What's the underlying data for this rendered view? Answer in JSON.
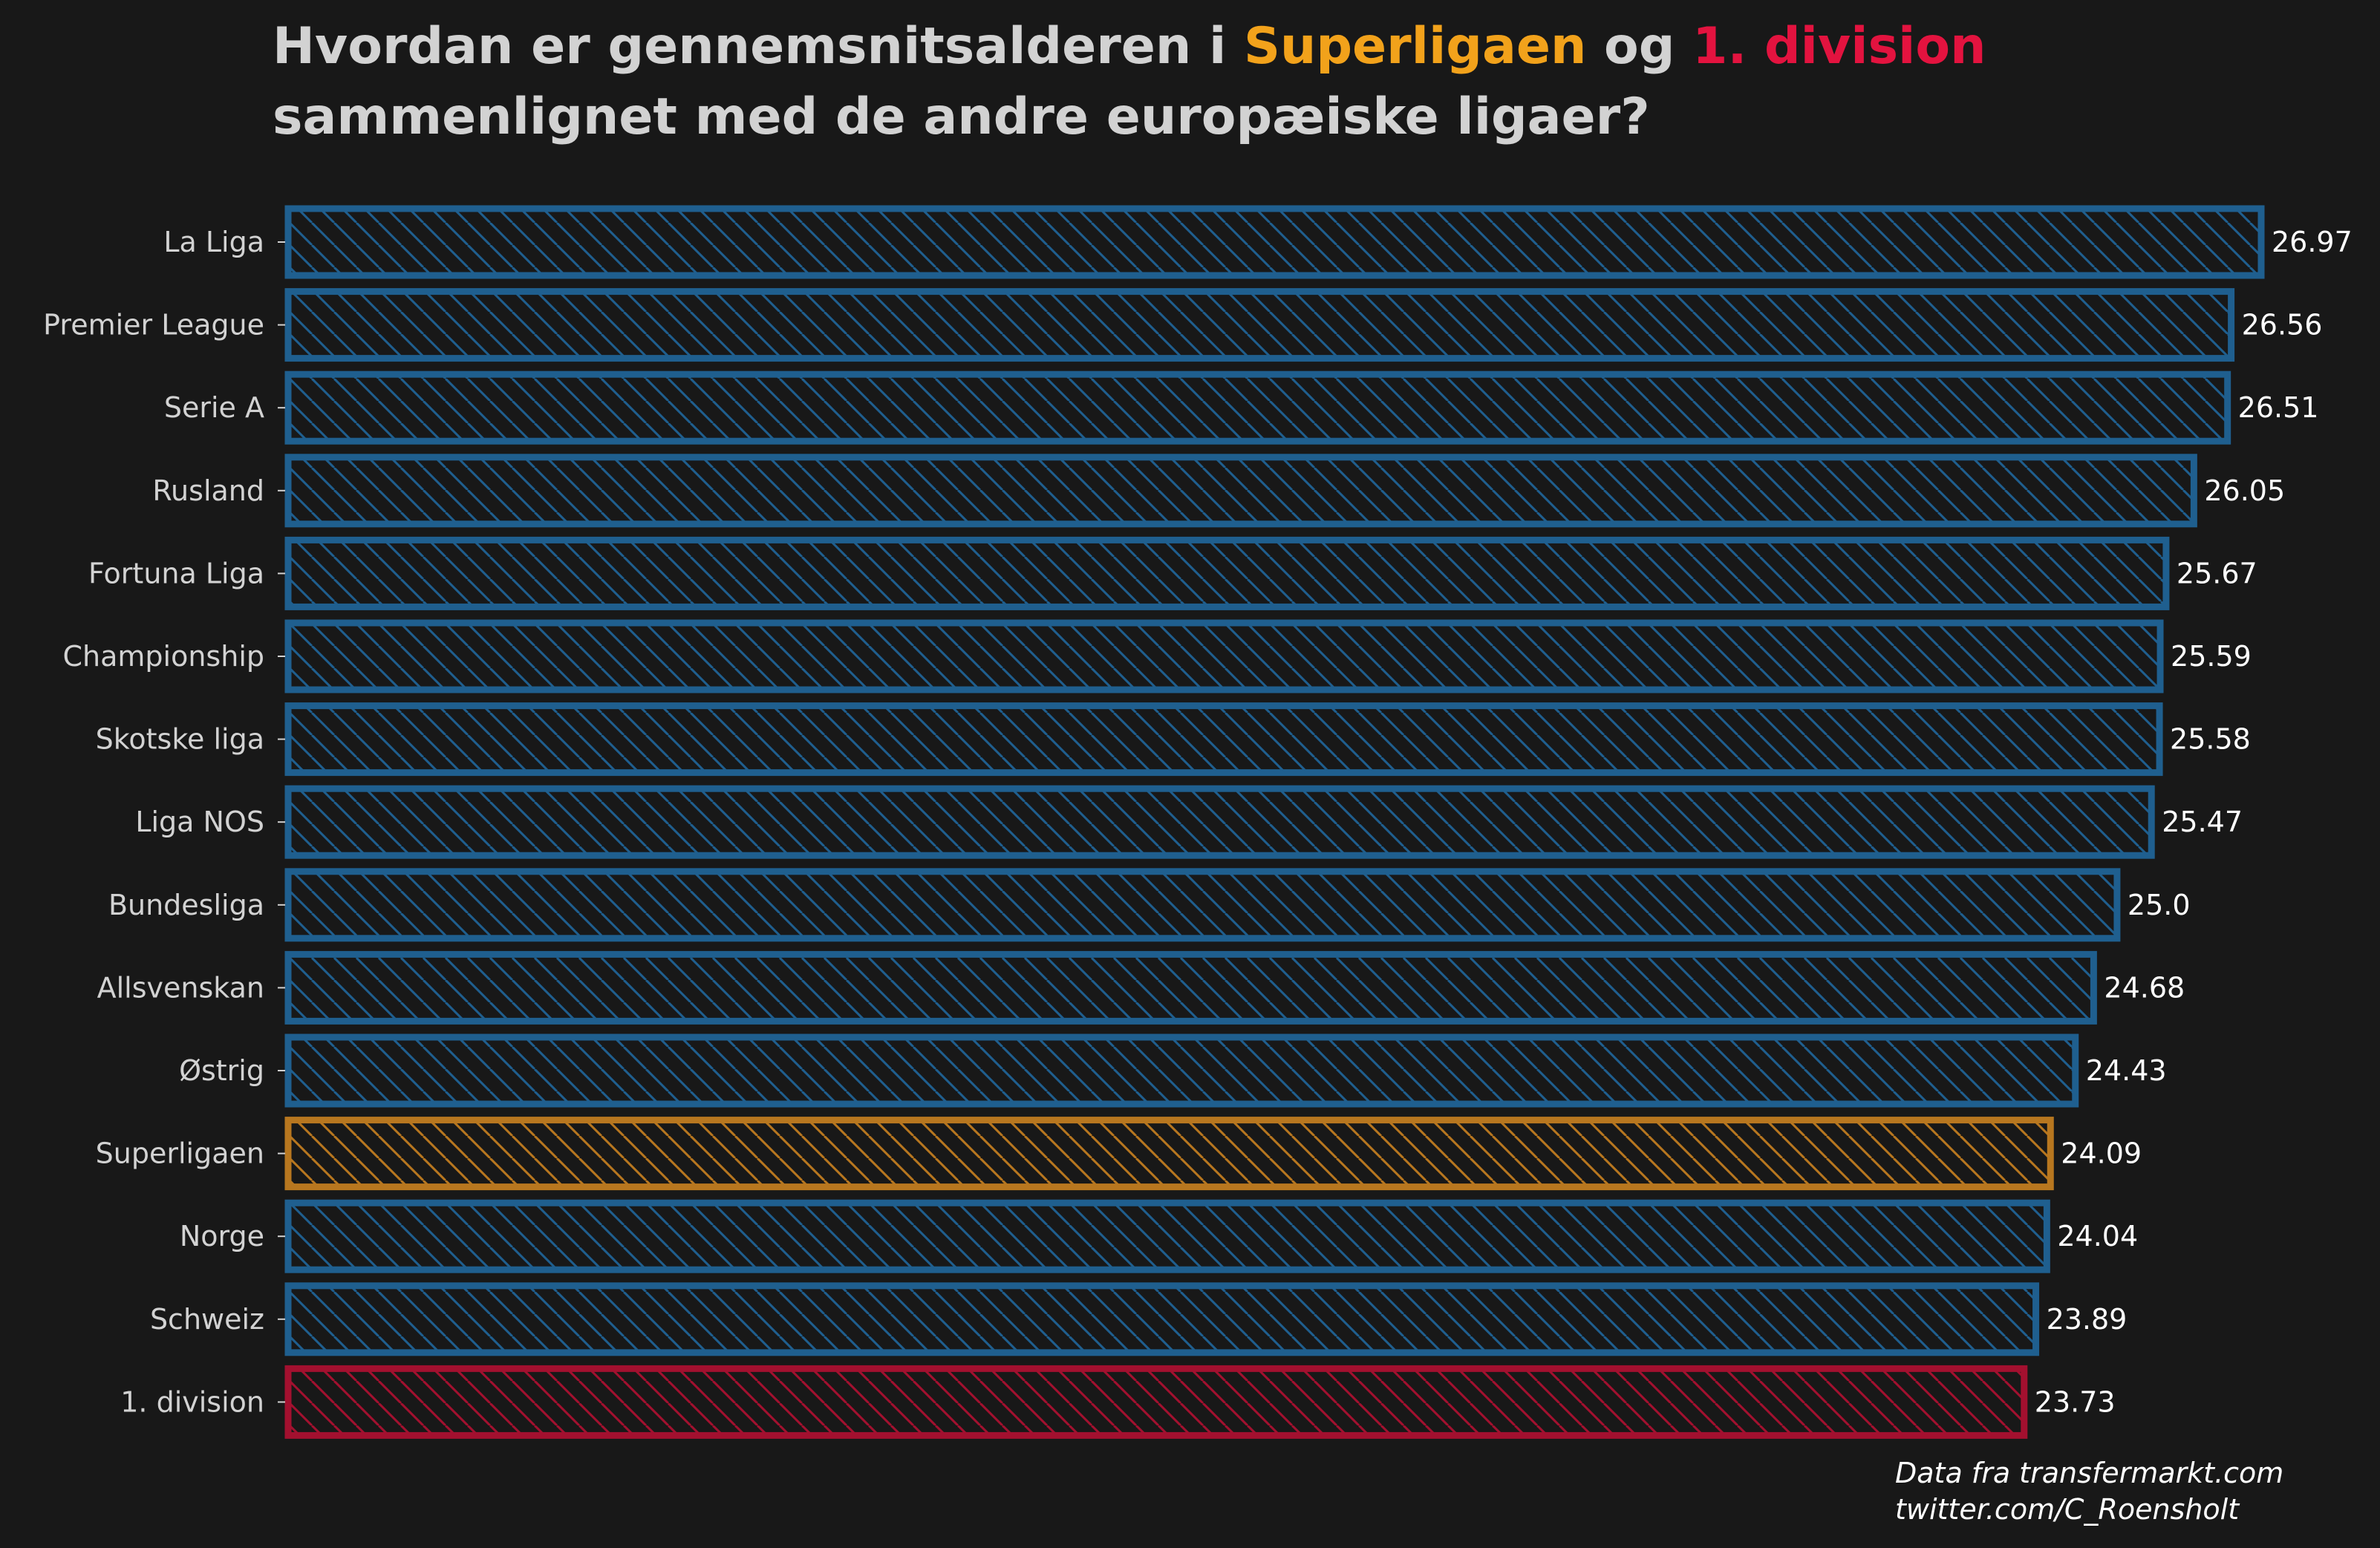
{
  "title": {
    "part1": "Hvordan er gennemsnitsalderen i ",
    "highlight1": "Superligaen",
    "part2": " og ",
    "highlight2": "1. division",
    "line2": "sammenlignet med de andre europæiske ligaer?"
  },
  "source": {
    "line1": "Data fra transfermarkt.com",
    "line2": "twitter.com/C_Roensholt"
  },
  "colors": {
    "background": "#181818",
    "default": "#1f5f8f",
    "superligaen": "#b8771f",
    "division1": "#a3102f",
    "title_orange": "#f2a21b",
    "title_red": "#e3133f",
    "text": "#d2d2d2"
  },
  "chart_data": {
    "type": "bar",
    "orientation": "horizontal",
    "title": "Hvordan er gennemsnitsalderen i Superligaen og 1. division sammenlignet med de andre europæiske ligaer?",
    "categories": [
      "La Liga",
      "Premier League",
      "Serie A",
      "Rusland",
      "Fortuna Liga",
      "Championship",
      "Skotske liga",
      "Liga NOS",
      "Bundesliga",
      "Allsvenskan",
      "Østrig",
      "Superligaen",
      "Norge",
      "Schweiz",
      "1. division"
    ],
    "values": [
      26.97,
      26.56,
      26.51,
      26.05,
      25.67,
      25.59,
      25.58,
      25.47,
      25.0,
      24.68,
      24.43,
      24.09,
      24.04,
      23.89,
      23.73
    ],
    "value_labels": [
      "26.97",
      "26.56",
      "26.51",
      "26.05",
      "25.67",
      "25.59",
      "25.58",
      "25.47",
      "25.0",
      "24.68",
      "24.43",
      "24.09",
      "24.04",
      "23.89",
      "23.73"
    ],
    "highlight": {
      "Superligaen": "superligaen",
      "1. division": "division1"
    },
    "xlim": [
      0,
      27.2
    ],
    "xlabel": "",
    "ylabel": "",
    "grid": false,
    "legend": "none"
  }
}
